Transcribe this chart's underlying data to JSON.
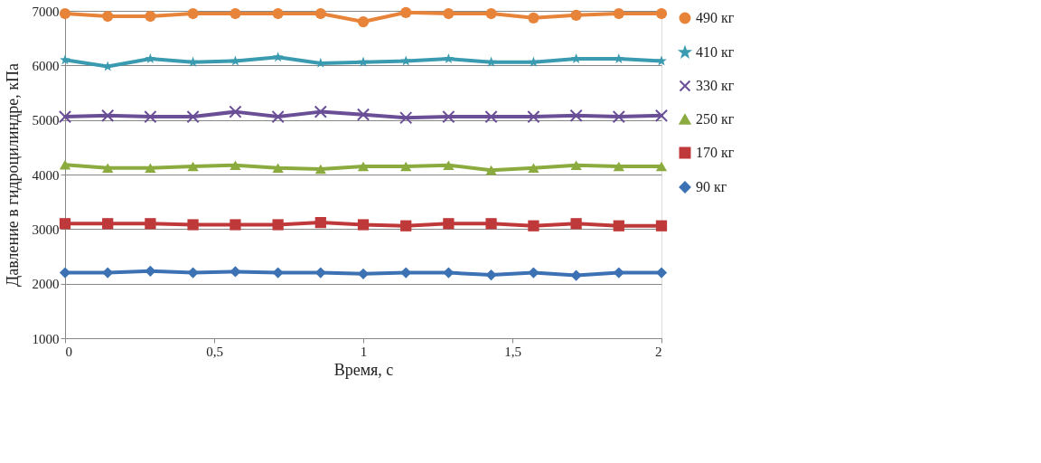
{
  "chart_data": {
    "type": "line",
    "xlabel": "Время, с",
    "ylabel": "Давление в гидроцилиндре, кПа",
    "x": [
      0,
      0.143,
      0.286,
      0.429,
      0.571,
      0.714,
      0.857,
      1,
      1.143,
      1.286,
      1.429,
      1.571,
      1.714,
      1.857,
      2
    ],
    "series": [
      {
        "name": "490 кг",
        "color": "#e8843a",
        "marker": "circle",
        "values": [
          6950,
          6900,
          6900,
          6950,
          6950,
          6950,
          6950,
          6800,
          6970,
          6950,
          6950,
          6870,
          6920,
          6950,
          6950
        ]
      },
      {
        "name": "410 кг",
        "color": "#3a9bb0",
        "marker": "star",
        "values": [
          6100,
          5980,
          6120,
          6060,
          6080,
          6150,
          6040,
          6060,
          6080,
          6120,
          6060,
          6060,
          6120,
          6120,
          6080
        ]
      },
      {
        "name": "330 кг",
        "color": "#6a4f96",
        "marker": "cross",
        "values": [
          5060,
          5080,
          5060,
          5060,
          5150,
          5060,
          5150,
          5100,
          5040,
          5060,
          5060,
          5060,
          5080,
          5060,
          5080
        ]
      },
      {
        "name": "250 кг",
        "color": "#8bab3f",
        "marker": "triangle",
        "values": [
          4180,
          4120,
          4120,
          4150,
          4170,
          4120,
          4100,
          4150,
          4150,
          4170,
          4080,
          4120,
          4170,
          4150,
          4150
        ]
      },
      {
        "name": "170 кг",
        "color": "#c0393a",
        "marker": "square",
        "values": [
          3100,
          3100,
          3100,
          3080,
          3080,
          3080,
          3120,
          3080,
          3060,
          3100,
          3100,
          3060,
          3100,
          3060,
          3060
        ]
      },
      {
        "name": "90 кг",
        "color": "#3c72b4",
        "marker": "diamond",
        "values": [
          2200,
          2200,
          2230,
          2200,
          2220,
          2200,
          2200,
          2180,
          2200,
          2200,
          2160,
          2200,
          2150,
          2200,
          2200
        ]
      }
    ],
    "xlim": [
      0,
      2
    ],
    "xticks": [
      0,
      {
        "value": 0.5,
        "label": "0,5"
      },
      1,
      {
        "value": 1.5,
        "label": "1,5"
      },
      2
    ],
    "ylim": [
      1000,
      7000
    ],
    "yticks": [
      1000,
      2000,
      3000,
      4000,
      5000,
      6000,
      7000
    ],
    "grid": "y",
    "legend": "right",
    "line_style": "solid"
  }
}
